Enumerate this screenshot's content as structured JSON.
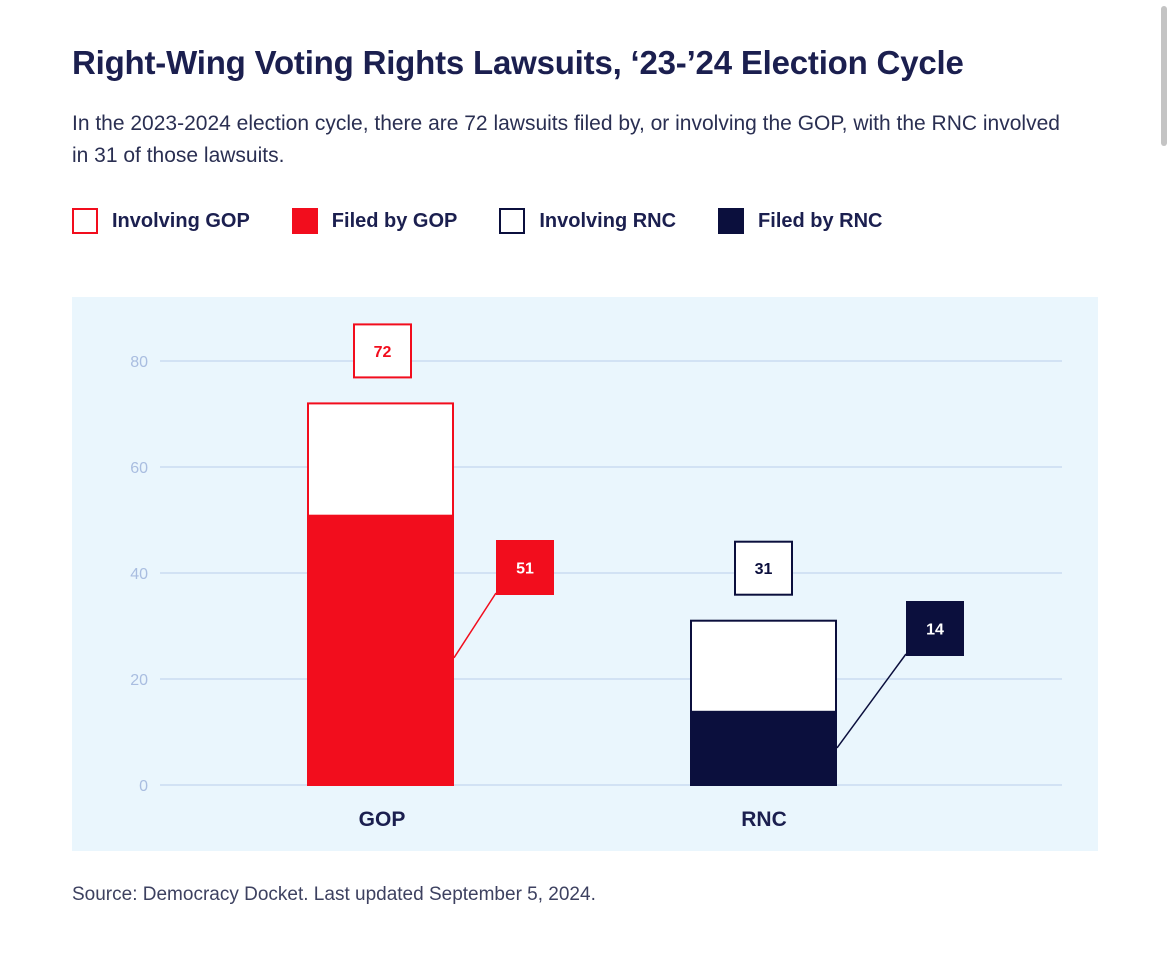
{
  "header": {
    "title": "Right-Wing Voting Rights Lawsuits, ‘23-’24 Election Cycle",
    "subtitle": "In the 2023-2024 election cycle, there are 72 lawsuits filed by, or involving the GOP, with the RNC involved in 31 of those lawsuits."
  },
  "legend": [
    {
      "label": "Involving GOP",
      "style": "outline",
      "color": "#f20d1d"
    },
    {
      "label": "Filed by GOP",
      "style": "filled",
      "color": "#f20d1d"
    },
    {
      "label": "Involving RNC",
      "style": "outline",
      "color": "#0b0f3d"
    },
    {
      "label": "Filed by RNC",
      "style": "filled",
      "color": "#0b0f3d"
    }
  ],
  "chart_data": {
    "type": "bar",
    "categories": [
      "GOP",
      "RNC"
    ],
    "series": [
      {
        "name": "Involving",
        "values": [
          72,
          31
        ]
      },
      {
        "name": "Filed by",
        "values": [
          51,
          14
        ]
      }
    ],
    "colors": {
      "GOP": "#f20d1d",
      "RNC": "#0b0f3d",
      "panel": "#eaf6fd",
      "grid": "#c9dcf2",
      "tick": "#a9bde0"
    },
    "yticks": [
      0,
      20,
      40,
      60,
      80
    ],
    "ylim": [
      0,
      80
    ],
    "grid": true,
    "legend_position": "top-left"
  },
  "footer": {
    "source": "Source: Democracy Docket. Last updated September 5, 2024."
  }
}
